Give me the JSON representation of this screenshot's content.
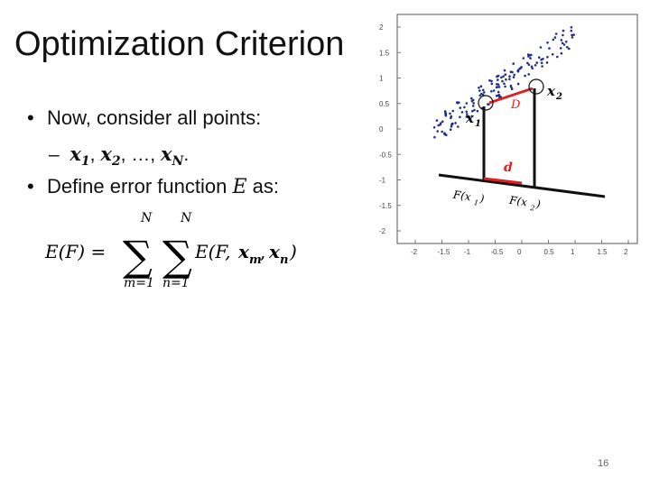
{
  "title": "Optimization Criterion",
  "bullets": {
    "b1": "Now, consider all points:",
    "b2_prefix": "Define error function",
    "b2_symbol": "E",
    "b2_suffix": "as:"
  },
  "subbullet": {
    "dash": "–",
    "x1_base": "x",
    "x1_sub": "1",
    "x2_base": "x",
    "x2_sub": "2",
    "ellipsis": "…",
    "xN_base": "x",
    "xN_sub": "N",
    "sep": ",",
    "end": "."
  },
  "equation": {
    "lhs": "E(F) =",
    "sum1_upper": "N",
    "sum1_lower": "m=1",
    "sum2_upper": "N",
    "sum2_lower": "n=1",
    "rhs_start": "E(F, ",
    "xm_base": "x",
    "xm_sub": "m",
    "comma": ",",
    "xn_base": "x",
    "xn_sub": "n",
    "rhs_end": ")"
  },
  "plot": {
    "y_ticks": [
      "2",
      "1.5",
      "1",
      "0.5",
      "0",
      "-0.5",
      "-1",
      "-1.5",
      "-2"
    ],
    "x_ticks": [
      "-2",
      "-1.5",
      "-1",
      "-0.5",
      "0",
      "0.5",
      "1",
      "1.5",
      "2"
    ],
    "label_x1": "x",
    "label_x1_sub": "1",
    "label_x2": "x",
    "label_x2_sub": "2",
    "label_D": "D",
    "label_d": "d",
    "label_Fx1": "F(x",
    "label_Fx1_sub": "1",
    "label_Fx1_end": ")",
    "label_Fx2": "F(x",
    "label_Fx2_sub": "2",
    "label_Fx2_end": ")",
    "point_color": "#1f2d8a",
    "highlight_color": "#e02020"
  },
  "page_number": "16"
}
